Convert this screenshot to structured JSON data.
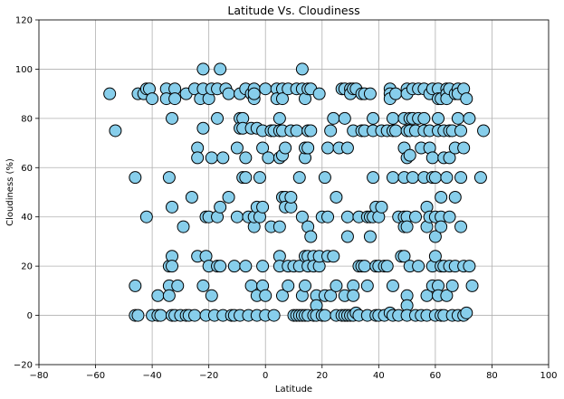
{
  "chart_data": {
    "type": "scatter",
    "title": "Latitude Vs. Cloudiness",
    "xlabel": "Latitude",
    "ylabel": "Cloudiness (%)",
    "xlim": [
      -80,
      100
    ],
    "ylim": [
      -20,
      120
    ],
    "xticks": [
      -80,
      -60,
      -40,
      -20,
      0,
      20,
      40,
      60,
      80,
      100
    ],
    "yticks": [
      -20,
      0,
      20,
      40,
      60,
      80,
      100,
      120
    ],
    "grid": true,
    "marker_color": "#87ceeb",
    "marker_edge_color": "#000000",
    "points": [
      [
        -55,
        90
      ],
      [
        -53,
        75
      ],
      [
        -46,
        56
      ],
      [
        -46,
        12
      ],
      [
        -46,
        0
      ],
      [
        -45,
        0
      ],
      [
        -45,
        90
      ],
      [
        -43,
        90
      ],
      [
        -42,
        40
      ],
      [
        -42,
        92
      ],
      [
        -41,
        92
      ],
      [
        -40,
        88
      ],
      [
        -40,
        0
      ],
      [
        -38,
        8
      ],
      [
        -38,
        0
      ],
      [
        -37,
        0
      ],
      [
        -35,
        92
      ],
      [
        -35,
        88
      ],
      [
        -34,
        20
      ],
      [
        -34,
        12
      ],
      [
        -34,
        8
      ],
      [
        -34,
        56
      ],
      [
        -33,
        44
      ],
      [
        -33,
        80
      ],
      [
        -33,
        24
      ],
      [
        -33,
        20
      ],
      [
        -33,
        0
      ],
      [
        -32,
        92
      ],
      [
        -32,
        88
      ],
      [
        -32,
        0
      ],
      [
        -31,
        12
      ],
      [
        -30,
        0
      ],
      [
        -29,
        36
      ],
      [
        -28,
        90
      ],
      [
        -28,
        0
      ],
      [
        -27,
        0
      ],
      [
        -26,
        48
      ],
      [
        -25,
        92
      ],
      [
        -25,
        0
      ],
      [
        -24,
        68
      ],
      [
        -24,
        64
      ],
      [
        -24,
        24
      ],
      [
        -23,
        88
      ],
      [
        -22,
        100
      ],
      [
        -22,
        92
      ],
      [
        -22,
        76
      ],
      [
        -22,
        12
      ],
      [
        -21,
        40
      ],
      [
        -21,
        24
      ],
      [
        -21,
        0
      ],
      [
        -20,
        88
      ],
      [
        -20,
        40
      ],
      [
        -20,
        20
      ],
      [
        -19,
        92
      ],
      [
        -19,
        64
      ],
      [
        -19,
        8
      ],
      [
        -18,
        0
      ],
      [
        -17,
        92
      ],
      [
        -17,
        80
      ],
      [
        -17,
        40
      ],
      [
        -17,
        20
      ],
      [
        -16,
        100
      ],
      [
        -16,
        44
      ],
      [
        -16,
        20
      ],
      [
        -15,
        64
      ],
      [
        -15,
        0
      ],
      [
        -14,
        92
      ],
      [
        -13,
        90
      ],
      [
        -13,
        48
      ],
      [
        -12,
        0
      ],
      [
        -11,
        20
      ],
      [
        -11,
        0
      ],
      [
        -10,
        68
      ],
      [
        -10,
        40
      ],
      [
        -9,
        90
      ],
      [
        -9,
        80
      ],
      [
        -9,
        76
      ],
      [
        -9,
        0
      ],
      [
        -8,
        80
      ],
      [
        -8,
        76
      ],
      [
        -8,
        56
      ],
      [
        -7,
        92
      ],
      [
        -7,
        56
      ],
      [
        -7,
        64
      ],
      [
        -7,
        20
      ],
      [
        -6,
        40
      ],
      [
        -6,
        0
      ],
      [
        -5,
        90
      ],
      [
        -5,
        76
      ],
      [
        -5,
        12
      ],
      [
        -4,
        92
      ],
      [
        -4,
        88
      ],
      [
        -4,
        90
      ],
      [
        -4,
        36
      ],
      [
        -4,
        40
      ],
      [
        -3,
        44
      ],
      [
        -3,
        8
      ],
      [
        -3,
        0
      ],
      [
        -3,
        76
      ],
      [
        -2,
        56
      ],
      [
        -2,
        40
      ],
      [
        -1,
        75
      ],
      [
        -1,
        68
      ],
      [
        -1,
        44
      ],
      [
        -1,
        20
      ],
      [
        -1,
        12
      ],
      [
        0,
        92
      ],
      [
        0,
        8
      ],
      [
        0,
        0
      ],
      [
        1,
        64
      ],
      [
        2,
        75
      ],
      [
        2,
        36
      ],
      [
        3,
        0
      ],
      [
        3,
        75
      ],
      [
        4,
        92
      ],
      [
        4,
        88
      ],
      [
        5,
        80
      ],
      [
        5,
        75
      ],
      [
        5,
        64
      ],
      [
        5,
        36
      ],
      [
        5,
        24
      ],
      [
        5,
        20
      ],
      [
        6,
        48
      ],
      [
        6,
        8
      ],
      [
        6,
        92
      ],
      [
        6,
        88
      ],
      [
        6,
        75
      ],
      [
        6,
        65
      ],
      [
        7,
        68
      ],
      [
        7,
        48
      ],
      [
        7,
        44
      ],
      [
        8,
        92
      ],
      [
        8,
        20
      ],
      [
        8,
        12
      ],
      [
        9,
        75
      ],
      [
        9,
        44
      ],
      [
        9,
        48
      ],
      [
        10,
        20
      ],
      [
        10,
        0
      ],
      [
        11,
        92
      ],
      [
        11,
        75
      ],
      [
        11,
        0
      ],
      [
        12,
        20
      ],
      [
        12,
        56
      ],
      [
        12,
        0
      ],
      [
        13,
        100
      ],
      [
        13,
        92
      ],
      [
        13,
        40
      ],
      [
        13,
        8
      ],
      [
        13,
        0
      ],
      [
        14,
        88
      ],
      [
        14,
        64
      ],
      [
        14,
        68
      ],
      [
        14,
        24
      ],
      [
        14,
        12
      ],
      [
        14,
        0
      ],
      [
        15,
        92
      ],
      [
        15,
        75
      ],
      [
        15,
        68
      ],
      [
        15,
        36
      ],
      [
        15,
        24
      ],
      [
        15,
        20
      ],
      [
        15,
        0
      ],
      [
        16,
        32
      ],
      [
        16,
        92
      ],
      [
        16,
        75
      ],
      [
        17,
        24
      ],
      [
        17,
        20
      ],
      [
        17,
        0
      ],
      [
        18,
        8
      ],
      [
        18,
        4
      ],
      [
        18,
        0
      ],
      [
        19,
        90
      ],
      [
        19,
        20
      ],
      [
        19,
        24
      ],
      [
        20,
        40
      ],
      [
        20,
        0
      ],
      [
        21,
        56
      ],
      [
        21,
        8
      ],
      [
        21,
        0
      ],
      [
        22,
        68
      ],
      [
        22,
        40
      ],
      [
        22,
        24
      ],
      [
        23,
        75
      ],
      [
        23,
        8
      ],
      [
        24,
        80
      ],
      [
        24,
        24
      ],
      [
        25,
        48
      ],
      [
        25,
        12
      ],
      [
        25,
        0
      ],
      [
        26,
        68
      ],
      [
        27,
        92
      ],
      [
        27,
        0
      ],
      [
        28,
        92
      ],
      [
        28,
        80
      ],
      [
        28,
        8
      ],
      [
        28,
        0
      ],
      [
        29,
        68
      ],
      [
        29,
        40
      ],
      [
        29,
        32
      ],
      [
        29,
        0
      ],
      [
        30,
        92
      ],
      [
        30,
        90
      ],
      [
        30,
        0
      ],
      [
        31,
        92
      ],
      [
        31,
        75
      ],
      [
        31,
        12
      ],
      [
        31,
        8
      ],
      [
        31,
        0
      ],
      [
        32,
        92
      ],
      [
        32,
        1
      ],
      [
        33,
        40
      ],
      [
        33,
        20
      ],
      [
        33,
        0
      ],
      [
        34,
        90
      ],
      [
        34,
        75
      ],
      [
        34,
        20
      ],
      [
        35,
        90
      ],
      [
        35,
        75
      ],
      [
        35,
        20
      ],
      [
        36,
        40
      ],
      [
        36,
        12
      ],
      [
        36,
        0
      ],
      [
        37,
        90
      ],
      [
        37,
        40
      ],
      [
        37,
        32
      ],
      [
        38,
        75
      ],
      [
        38,
        40
      ],
      [
        38,
        80
      ],
      [
        38,
        56
      ],
      [
        39,
        44
      ],
      [
        39,
        20
      ],
      [
        39,
        0
      ],
      [
        40,
        40
      ],
      [
        40,
        20
      ],
      [
        40,
        0
      ],
      [
        41,
        44
      ],
      [
        41,
        75
      ],
      [
        42,
        20
      ],
      [
        42,
        0
      ],
      [
        43,
        75
      ],
      [
        43,
        20
      ],
      [
        44,
        92
      ],
      [
        44,
        90
      ],
      [
        44,
        88
      ],
      [
        44,
        1
      ],
      [
        45,
        80
      ],
      [
        45,
        75
      ],
      [
        45,
        56
      ],
      [
        45,
        12
      ],
      [
        45,
        0
      ],
      [
        46,
        90
      ],
      [
        46,
        75
      ],
      [
        47,
        40
      ],
      [
        47,
        0
      ],
      [
        48,
        24
      ],
      [
        49,
        80
      ],
      [
        49,
        68
      ],
      [
        49,
        56
      ],
      [
        49,
        40
      ],
      [
        49,
        36
      ],
      [
        49,
        24
      ],
      [
        50,
        92
      ],
      [
        50,
        90
      ],
      [
        50,
        75
      ],
      [
        50,
        64
      ],
      [
        50,
        40
      ],
      [
        50,
        36
      ],
      [
        50,
        8
      ],
      [
        50,
        4
      ],
      [
        50,
        0
      ],
      [
        51,
        80
      ],
      [
        51,
        75
      ],
      [
        51,
        65
      ],
      [
        51,
        20
      ],
      [
        52,
        92
      ],
      [
        52,
        80
      ],
      [
        52,
        56
      ],
      [
        53,
        75
      ],
      [
        53,
        40
      ],
      [
        53,
        0
      ],
      [
        54,
        92
      ],
      [
        54,
        80
      ],
      [
        54,
        20
      ],
      [
        55,
        68
      ],
      [
        55,
        0
      ],
      [
        56,
        92
      ],
      [
        56,
        80
      ],
      [
        56,
        75
      ],
      [
        56,
        56
      ],
      [
        57,
        44
      ],
      [
        57,
        36
      ],
      [
        57,
        8
      ],
      [
        57,
        0
      ],
      [
        58,
        90
      ],
      [
        58,
        75
      ],
      [
        58,
        68
      ],
      [
        58,
        40
      ],
      [
        59,
        92
      ],
      [
        59,
        64
      ],
      [
        59,
        56
      ],
      [
        59,
        20
      ],
      [
        59,
        12
      ],
      [
        60,
        56
      ],
      [
        60,
        32
      ],
      [
        60,
        24
      ],
      [
        60,
        40
      ],
      [
        60,
        0
      ],
      [
        61,
        92
      ],
      [
        61,
        88
      ],
      [
        61,
        80
      ],
      [
        61,
        75
      ],
      [
        61,
        12
      ],
      [
        61,
        8
      ],
      [
        62,
        88
      ],
      [
        62,
        48
      ],
      [
        62,
        40
      ],
      [
        62,
        36
      ],
      [
        62,
        20
      ],
      [
        62,
        0
      ],
      [
        63,
        75
      ],
      [
        63,
        64
      ],
      [
        63,
        20
      ],
      [
        63,
        0
      ],
      [
        64,
        92
      ],
      [
        64,
        90
      ],
      [
        64,
        88
      ],
      [
        64,
        56
      ],
      [
        64,
        8
      ],
      [
        65,
        92
      ],
      [
        65,
        75
      ],
      [
        65,
        64
      ],
      [
        65,
        40
      ],
      [
        65,
        20
      ],
      [
        66,
        75
      ],
      [
        66,
        12
      ],
      [
        66,
        0
      ],
      [
        67,
        90
      ],
      [
        67,
        68
      ],
      [
        67,
        48
      ],
      [
        67,
        20
      ],
      [
        68,
        92
      ],
      [
        68,
        90
      ],
      [
        68,
        80
      ],
      [
        68,
        0
      ],
      [
        69,
        75
      ],
      [
        69,
        56
      ],
      [
        69,
        36
      ],
      [
        70,
        92
      ],
      [
        70,
        68
      ],
      [
        70,
        20
      ],
      [
        70,
        0
      ],
      [
        71,
        88
      ],
      [
        71,
        1
      ],
      [
        72,
        80
      ],
      [
        72,
        20
      ],
      [
        73,
        12
      ],
      [
        76,
        56
      ],
      [
        77,
        75
      ]
    ]
  }
}
